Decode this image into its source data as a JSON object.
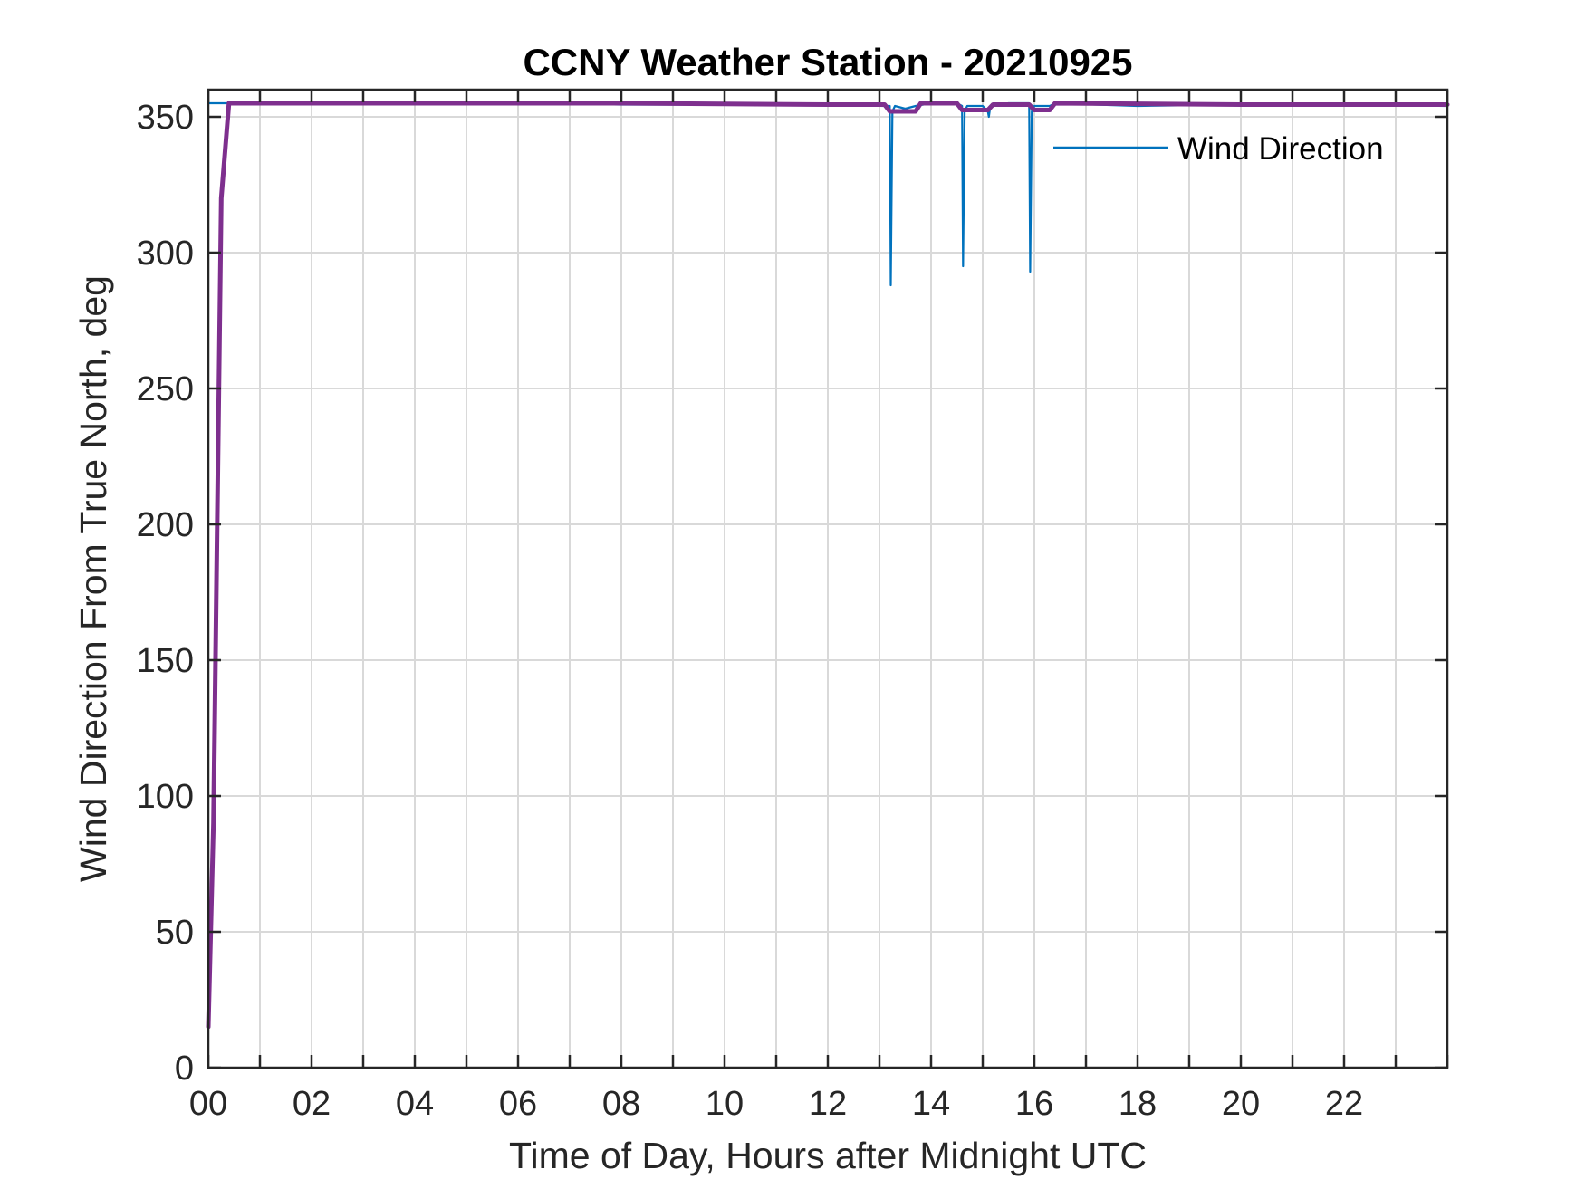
{
  "chart_data": {
    "type": "line",
    "title": "CCNY Weather Station - 20210925",
    "xlabel": "Time of Day, Hours after Midnight UTC",
    "ylabel": "Wind Direction From True North, deg",
    "xlim": [
      0,
      24
    ],
    "ylim": [
      0,
      360
    ],
    "xticks": [
      0,
      2,
      4,
      6,
      8,
      10,
      12,
      14,
      16,
      18,
      20,
      22
    ],
    "xtick_labels": [
      "00",
      "02",
      "04",
      "06",
      "08",
      "10",
      "12",
      "14",
      "16",
      "18",
      "20",
      "22"
    ],
    "yticks": [
      0,
      50,
      100,
      150,
      200,
      250,
      300,
      350
    ],
    "ytick_labels": [
      "0",
      "50",
      "100",
      "150",
      "200",
      "250",
      "300",
      "350"
    ],
    "grid": true,
    "legend_position": "top-right",
    "series": [
      {
        "name": "Wind Direction",
        "color": "#0072BD",
        "x": [
          0,
          0.05,
          1,
          2,
          4,
          6,
          8,
          10,
          12,
          13.1,
          13.2,
          13.22,
          13.25,
          13.3,
          13.5,
          13.7,
          14,
          14.5,
          14.6,
          14.62,
          14.65,
          14.7,
          15,
          15.1,
          15.12,
          15.15,
          15.5,
          15.9,
          15.92,
          15.95,
          16,
          16.3,
          16.4,
          18,
          20,
          22,
          24
        ],
        "y": [
          355,
          355,
          355,
          355,
          355,
          355,
          354.5,
          354.5,
          354.5,
          354,
          354,
          288,
          352,
          354,
          353,
          354,
          355,
          355,
          354,
          295,
          352,
          354,
          354,
          352,
          350,
          354,
          355,
          355,
          293,
          352,
          354,
          354,
          355,
          354,
          354.5,
          354.5,
          354
        ]
      },
      {
        "color": "#7E2F8E",
        "x": [
          0,
          0.1,
          0.25,
          0.4,
          1,
          4,
          8,
          12,
          13.1,
          13.2,
          13.7,
          13.8,
          14.5,
          14.6,
          15.1,
          15.2,
          15.9,
          16.0,
          16.3,
          16.4,
          20,
          24
        ],
        "y": [
          15,
          90,
          320,
          355,
          355,
          355,
          355,
          354.5,
          354.5,
          352,
          352,
          355,
          355,
          352.5,
          352.5,
          354.5,
          354.5,
          352.5,
          352.5,
          355,
          354.5,
          354.5
        ]
      }
    ]
  }
}
